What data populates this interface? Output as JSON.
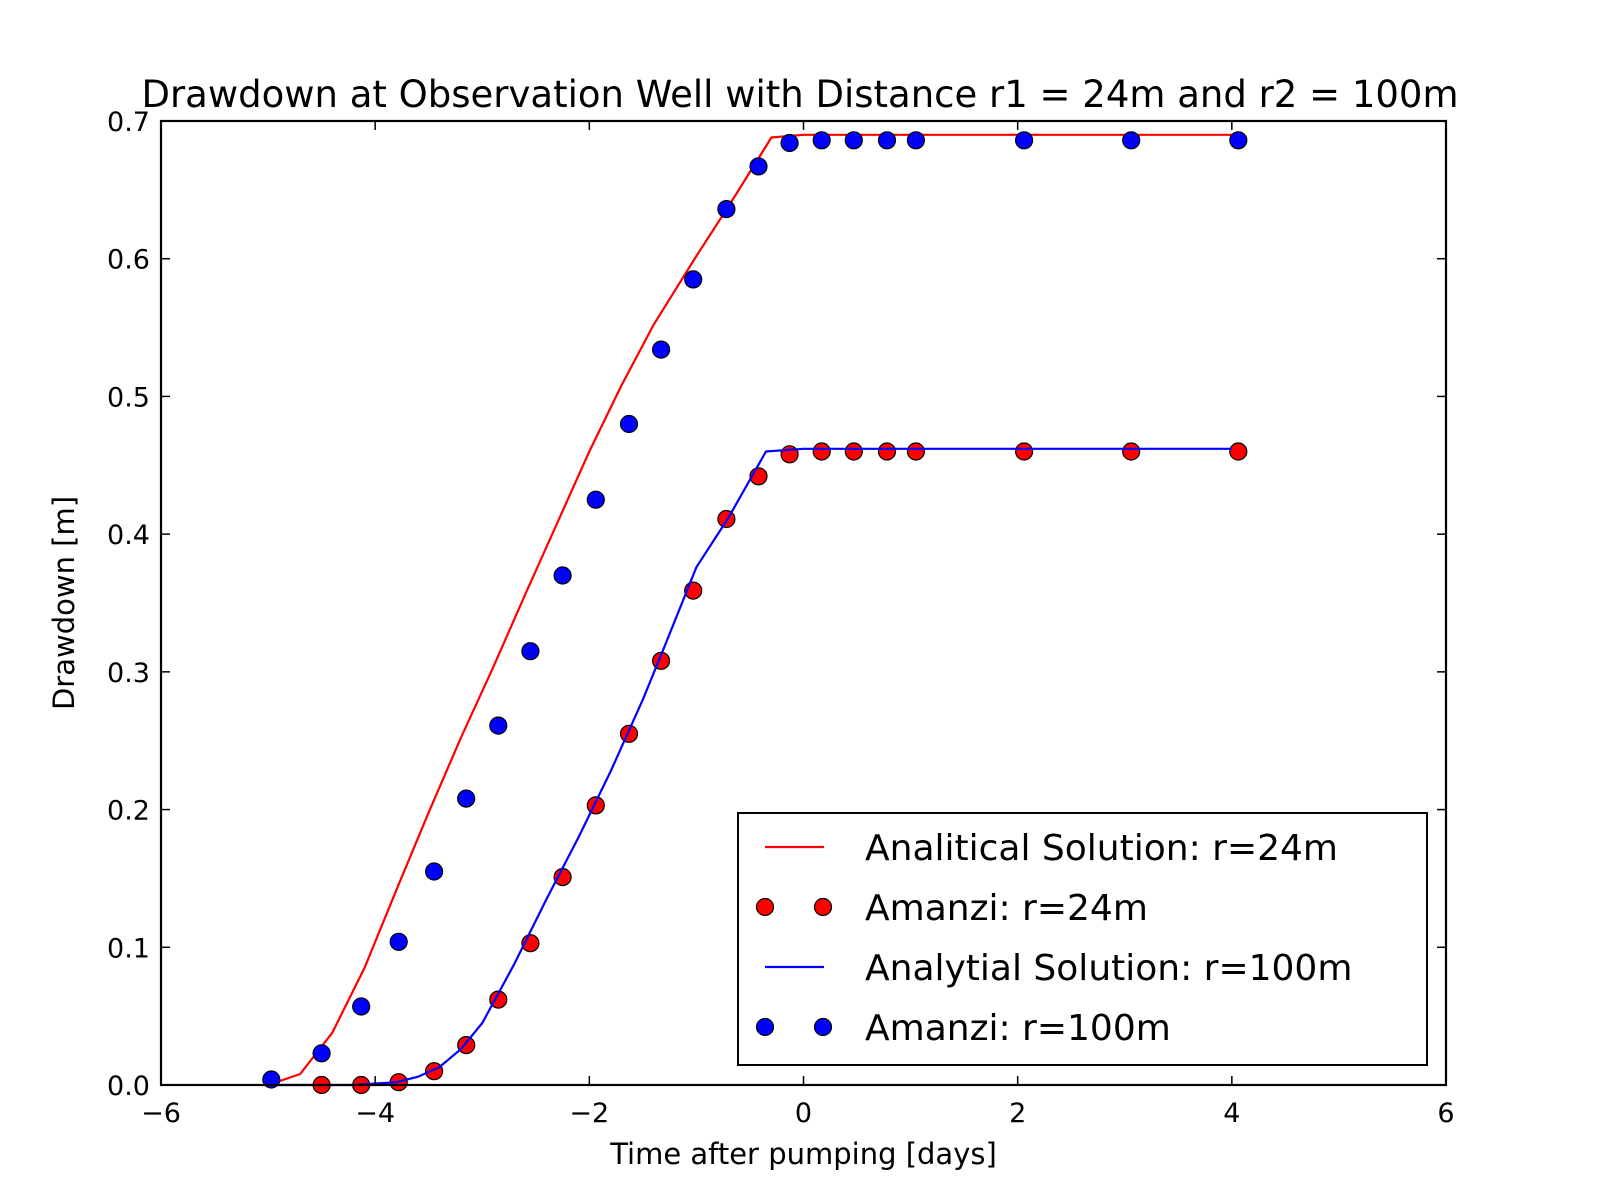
{
  "chart_data": {
    "type": "line",
    "title": "Drawdown at Observation Well with Distance r1  = 24m and r2 = 100m",
    "xlabel": "Time after pumping [days]",
    "ylabel": "Drawdown [m]",
    "xlim": [
      -6,
      6
    ],
    "ylim": [
      0,
      0.7
    ],
    "x_ticks": [
      -6,
      -4,
      -2,
      0,
      2,
      4,
      6
    ],
    "x_tick_labels": [
      "−6",
      "−4",
      "−2",
      "0",
      "2",
      "4",
      "6"
    ],
    "y_ticks": [
      0.0,
      0.1,
      0.2,
      0.3,
      0.4,
      0.5,
      0.6,
      0.7
    ],
    "y_tick_labels": [
      "0.0",
      "0.1",
      "0.2",
      "0.3",
      "0.4",
      "0.5",
      "0.6",
      "0.7"
    ],
    "grid": false,
    "legend_position": "bottom-right",
    "series": [
      {
        "name": "Analitical Solution: r=24m",
        "style": "line",
        "color": "#ff0000",
        "x": [
          -5.0,
          -4.7,
          -4.4,
          -4.1,
          -3.8,
          -3.5,
          -3.2,
          -2.9,
          -2.6,
          -2.3,
          -2.0,
          -1.7,
          -1.4,
          -1.0,
          -0.7,
          -0.3,
          0.0,
          0.5,
          1.0,
          2.0,
          3.0,
          4.0
        ],
        "y": [
          0.0,
          0.008,
          0.038,
          0.085,
          0.142,
          0.198,
          0.252,
          0.303,
          0.356,
          0.408,
          0.46,
          0.508,
          0.552,
          0.602,
          0.638,
          0.688,
          0.69,
          0.69,
          0.69,
          0.69,
          0.69,
          0.69
        ]
      },
      {
        "name": "Amanzi: r=24m",
        "style": "markers",
        "color": "#ff0000",
        "x": [
          -4.5,
          -4.13,
          -3.78,
          -3.45,
          -3.15,
          -2.85,
          -2.55,
          -2.25,
          -1.94,
          -1.63,
          -1.33,
          -1.03,
          -0.72,
          -0.42,
          -0.13,
          0.17,
          0.47,
          0.78,
          1.05,
          2.06,
          3.06,
          4.06
        ],
        "y": [
          0.0,
          0.0,
          0.002,
          0.01,
          0.029,
          0.062,
          0.103,
          0.151,
          0.203,
          0.255,
          0.308,
          0.359,
          0.411,
          0.442,
          0.458,
          0.46,
          0.46,
          0.46,
          0.46,
          0.46,
          0.46,
          0.46
        ]
      },
      {
        "name": "Analytial Solution: r=100m",
        "style": "line",
        "color": "#0000ff",
        "x": [
          -5.0,
          -4.2,
          -3.8,
          -3.6,
          -3.4,
          -3.2,
          -3.0,
          -2.7,
          -2.4,
          -2.1,
          -1.8,
          -1.5,
          -1.3,
          -1.0,
          -0.7,
          -0.35,
          0.0,
          0.5,
          1.0,
          2.0,
          3.0,
          4.0
        ],
        "y": [
          0.0,
          0.0,
          0.002,
          0.006,
          0.013,
          0.026,
          0.045,
          0.088,
          0.135,
          0.18,
          0.228,
          0.28,
          0.318,
          0.376,
          0.412,
          0.46,
          0.462,
          0.462,
          0.462,
          0.462,
          0.462,
          0.462
        ]
      },
      {
        "name": "Amanzi: r=100m",
        "style": "markers",
        "color": "#0000ff",
        "x": [
          -4.97,
          -4.5,
          -4.13,
          -3.78,
          -3.45,
          -3.15,
          -2.85,
          -2.55,
          -2.25,
          -1.94,
          -1.63,
          -1.33,
          -1.03,
          -0.72,
          -0.42,
          -0.13,
          0.17,
          0.47,
          0.78,
          1.05,
          2.06,
          3.06,
          4.06
        ],
        "y": [
          0.004,
          0.023,
          0.057,
          0.104,
          0.155,
          0.208,
          0.261,
          0.315,
          0.37,
          0.425,
          0.48,
          0.534,
          0.585,
          0.636,
          0.667,
          0.684,
          0.686,
          0.686,
          0.686,
          0.686,
          0.686,
          0.686,
          0.686
        ]
      }
    ]
  }
}
